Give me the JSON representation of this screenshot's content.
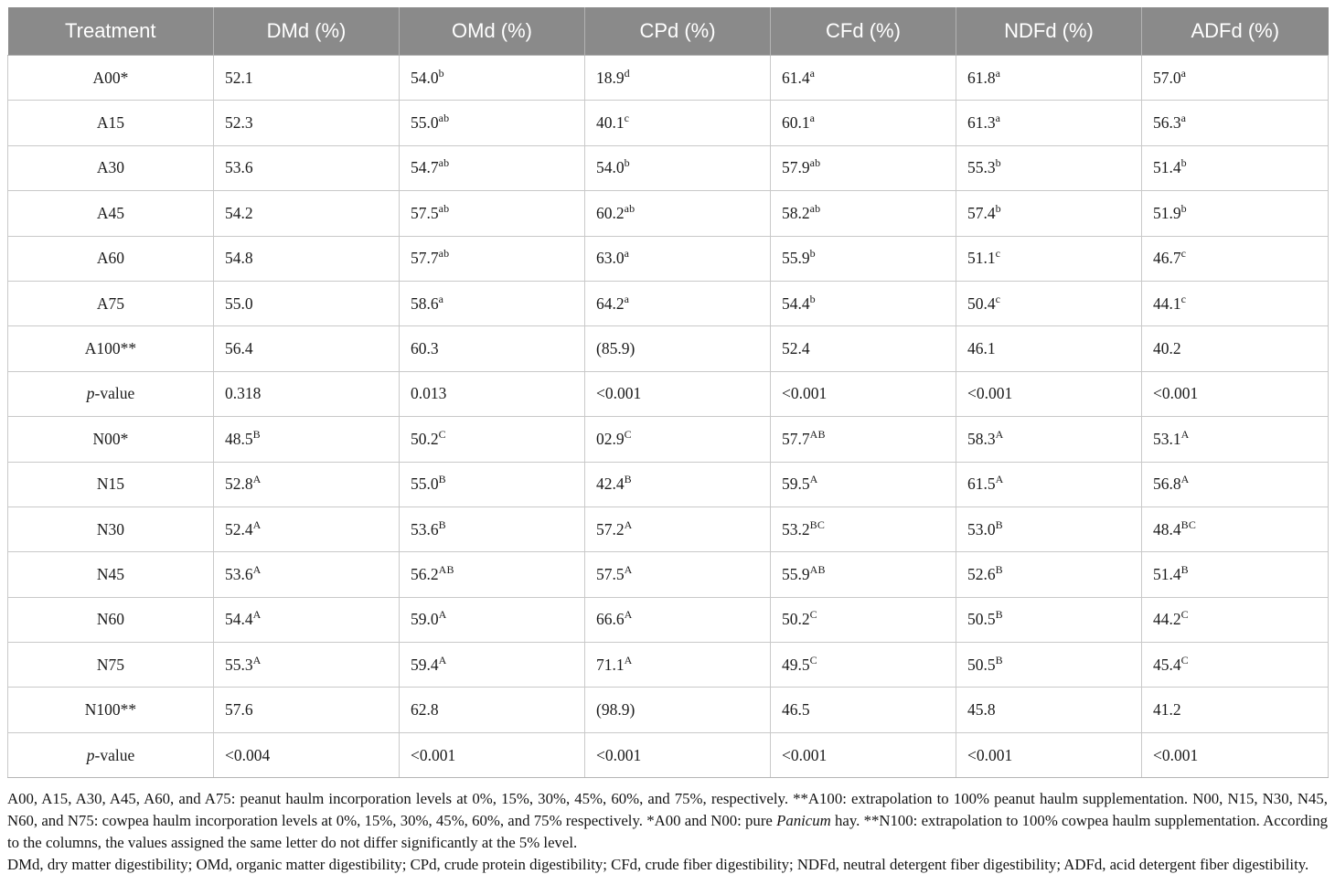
{
  "colors": {
    "header_bg": "#8a8a8a",
    "header_fg": "#ffffff",
    "border": "#c9c9c9"
  },
  "table": {
    "columns": [
      "Treatment",
      "DMd (%)",
      "OMd (%)",
      "CPd (%)",
      "CFd (%)",
      "NDFd (%)",
      "ADFd (%)"
    ],
    "rows": [
      {
        "label": "A00*",
        "cells": [
          {
            "v": "52.1",
            "s": ""
          },
          {
            "v": "54.0",
            "s": "b"
          },
          {
            "v": "18.9",
            "s": "d"
          },
          {
            "v": "61.4",
            "s": "a"
          },
          {
            "v": "61.8",
            "s": "a"
          },
          {
            "v": "57.0",
            "s": "a"
          }
        ]
      },
      {
        "label": "A15",
        "cells": [
          {
            "v": "52.3",
            "s": ""
          },
          {
            "v": "55.0",
            "s": "ab"
          },
          {
            "v": "40.1",
            "s": "c"
          },
          {
            "v": "60.1",
            "s": "a"
          },
          {
            "v": "61.3",
            "s": "a"
          },
          {
            "v": "56.3",
            "s": "a"
          }
        ]
      },
      {
        "label": "A30",
        "cells": [
          {
            "v": "53.6",
            "s": ""
          },
          {
            "v": "54.7",
            "s": "ab"
          },
          {
            "v": "54.0",
            "s": "b"
          },
          {
            "v": "57.9",
            "s": "ab"
          },
          {
            "v": "55.3",
            "s": "b"
          },
          {
            "v": "51.4",
            "s": "b"
          }
        ]
      },
      {
        "label": "A45",
        "cells": [
          {
            "v": "54.2",
            "s": ""
          },
          {
            "v": "57.5",
            "s": "ab"
          },
          {
            "v": "60.2",
            "s": "ab"
          },
          {
            "v": "58.2",
            "s": "ab"
          },
          {
            "v": "57.4",
            "s": "b"
          },
          {
            "v": "51.9",
            "s": "b"
          }
        ]
      },
      {
        "label": "A60",
        "cells": [
          {
            "v": "54.8",
            "s": ""
          },
          {
            "v": "57.7",
            "s": "ab"
          },
          {
            "v": "63.0",
            "s": "a"
          },
          {
            "v": "55.9",
            "s": "b"
          },
          {
            "v": "51.1",
            "s": "c"
          },
          {
            "v": "46.7",
            "s": "c"
          }
        ]
      },
      {
        "label": "A75",
        "cells": [
          {
            "v": "55.0",
            "s": ""
          },
          {
            "v": "58.6",
            "s": "a"
          },
          {
            "v": "64.2",
            "s": "a"
          },
          {
            "v": "54.4",
            "s": "b"
          },
          {
            "v": "50.4",
            "s": "c"
          },
          {
            "v": "44.1",
            "s": "c"
          }
        ]
      },
      {
        "label": "A100**",
        "cells": [
          {
            "v": "56.4",
            "s": ""
          },
          {
            "v": "60.3",
            "s": ""
          },
          {
            "v": "(85.9)",
            "s": ""
          },
          {
            "v": "52.4",
            "s": ""
          },
          {
            "v": "46.1",
            "s": ""
          },
          {
            "v": "40.2",
            "s": ""
          }
        ]
      },
      {
        "label": "-value",
        "italic_prefix": "p",
        "cells": [
          {
            "v": "0.318",
            "s": ""
          },
          {
            "v": "0.013",
            "s": ""
          },
          {
            "v": "<0.001",
            "s": ""
          },
          {
            "v": "<0.001",
            "s": ""
          },
          {
            "v": "<0.001",
            "s": ""
          },
          {
            "v": "<0.001",
            "s": ""
          }
        ]
      },
      {
        "label": "N00*",
        "cells": [
          {
            "v": "48.5",
            "s": "B"
          },
          {
            "v": "50.2",
            "s": "C"
          },
          {
            "v": "02.9",
            "s": "C"
          },
          {
            "v": "57.7",
            "s": "AB"
          },
          {
            "v": "58.3",
            "s": "A"
          },
          {
            "v": "53.1",
            "s": "A"
          }
        ]
      },
      {
        "label": "N15",
        "cells": [
          {
            "v": "52.8",
            "s": "A"
          },
          {
            "v": "55.0",
            "s": "B"
          },
          {
            "v": "42.4",
            "s": "B"
          },
          {
            "v": "59.5",
            "s": "A"
          },
          {
            "v": "61.5",
            "s": "A"
          },
          {
            "v": "56.8",
            "s": "A"
          }
        ]
      },
      {
        "label": "N30",
        "cells": [
          {
            "v": "52.4",
            "s": "A"
          },
          {
            "v": "53.6",
            "s": "B"
          },
          {
            "v": "57.2",
            "s": "A"
          },
          {
            "v": "53.2",
            "s": "BC"
          },
          {
            "v": "53.0",
            "s": "B"
          },
          {
            "v": "48.4",
            "s": "BC"
          }
        ]
      },
      {
        "label": "N45",
        "cells": [
          {
            "v": "53.6",
            "s": "A"
          },
          {
            "v": "56.2",
            "s": "AB"
          },
          {
            "v": "57.5",
            "s": "A"
          },
          {
            "v": "55.9",
            "s": "AB"
          },
          {
            "v": "52.6",
            "s": "B"
          },
          {
            "v": "51.4",
            "s": "B"
          }
        ]
      },
      {
        "label": "N60",
        "cells": [
          {
            "v": "54.4",
            "s": "A"
          },
          {
            "v": "59.0",
            "s": "A"
          },
          {
            "v": "66.6",
            "s": "A"
          },
          {
            "v": "50.2",
            "s": "C"
          },
          {
            "v": "50.5",
            "s": "B"
          },
          {
            "v": "44.2",
            "s": "C"
          }
        ]
      },
      {
        "label": "N75",
        "cells": [
          {
            "v": "55.3",
            "s": "A"
          },
          {
            "v": "59.4",
            "s": "A"
          },
          {
            "v": "71.1",
            "s": "A"
          },
          {
            "v": "49.5",
            "s": "C"
          },
          {
            "v": "50.5",
            "s": "B"
          },
          {
            "v": "45.4",
            "s": "C"
          }
        ]
      },
      {
        "label": "N100**",
        "cells": [
          {
            "v": "57.6",
            "s": ""
          },
          {
            "v": "62.8",
            "s": ""
          },
          {
            "v": "(98.9)",
            "s": ""
          },
          {
            "v": "46.5",
            "s": ""
          },
          {
            "v": "45.8",
            "s": ""
          },
          {
            "v": "41.2",
            "s": ""
          }
        ]
      },
      {
        "label": "-value",
        "italic_prefix": "p",
        "cells": [
          {
            "v": "<0.004",
            "s": ""
          },
          {
            "v": "<0.001",
            "s": ""
          },
          {
            "v": "<0.001",
            "s": ""
          },
          {
            "v": "<0.001",
            "s": ""
          },
          {
            "v": "<0.001",
            "s": ""
          },
          {
            "v": "<0.001",
            "s": ""
          }
        ]
      }
    ]
  },
  "footnotes": [
    {
      "parts": [
        {
          "t": "A00, A15, A30, A45, A60, and A75: peanut haulm incorporation levels at 0%, 15%, 30%, 45%, 60%, and 75%, respectively. **A100: extrapolation to 100% peanut haulm supplementation. N00, N15, N30, N45, N60, and N75: cowpea haulm incorporation levels at 0%, 15%, 30%, 45%, 60%, and 75% respectively. *A00 and N00: pure "
        },
        {
          "t": "Panicum",
          "i": true
        },
        {
          "t": " hay. **N100: extrapolation to 100% cowpea haulm supplementation. According to the columns, the values assigned the same letter do not differ significantly at the 5% level."
        }
      ]
    },
    {
      "parts": [
        {
          "t": "DMd, dry matter digestibility; OMd, organic matter digestibility; CPd, crude protein digestibility; CFd, crude fiber digestibility; NDFd, neutral detergent fiber digestibility; ADFd, acid detergent fiber digestibility."
        }
      ]
    }
  ]
}
